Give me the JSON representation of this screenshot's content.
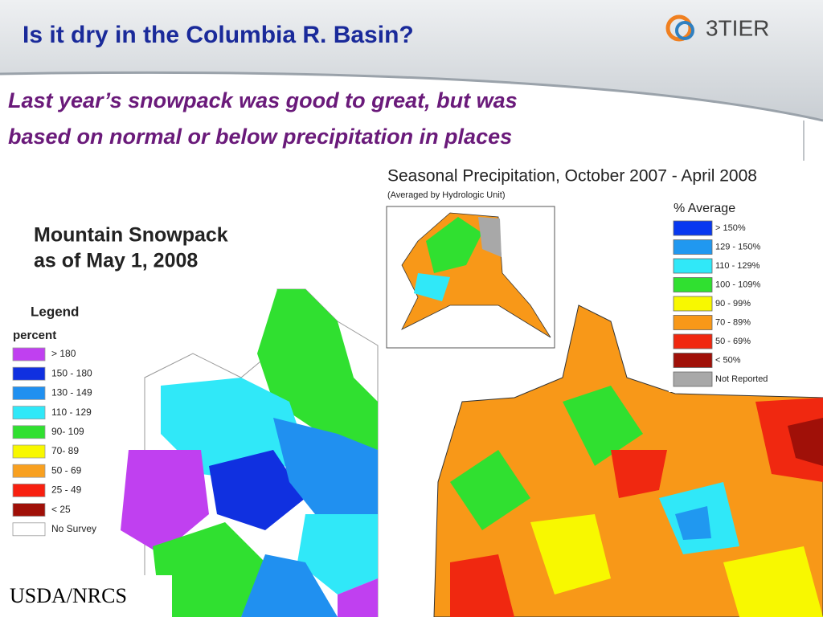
{
  "header": {
    "title": "Is it dry in the Columbia R. Basin?",
    "logo": "3TIER"
  },
  "subtitle": [
    "Last year’s snowpack was good to great, but was",
    "based on normal or below precipitation in places"
  ],
  "snowpack_map": {
    "title": [
      "Mountain Snowpack",
      "as of May 1, 2008"
    ],
    "legend_title": "Legend",
    "legend_unit": "percent",
    "legend": [
      {
        "label": "> 180",
        "color": "#c040f0"
      },
      {
        "label": "150 - 180",
        "color": "#1030e0"
      },
      {
        "label": "130 - 149",
        "color": "#2090f0"
      },
      {
        "label": "110 - 129",
        "color": "#30e8f8"
      },
      {
        "label": "90- 109",
        "color": "#30e030"
      },
      {
        "label": "70- 89",
        "color": "#f8f800"
      },
      {
        "label": "50 - 69",
        "color": "#f8a020"
      },
      {
        "label": "25 - 49",
        "color": "#f82010"
      },
      {
        "label": "< 25",
        "color": "#a01008"
      },
      {
        "label": "No Survey",
        "color": "#ffffff"
      }
    ],
    "source": "USDA/NRCS"
  },
  "precip_map": {
    "title": "Seasonal Precipitation, October 2007 - April 2008",
    "subtitle": "(Averaged by Hydrologic Unit)",
    "legend_title": "% Average",
    "legend": [
      {
        "label": "> 150%",
        "color": "#0838f0"
      },
      {
        "label": "129 - 150%",
        "color": "#2098f0"
      },
      {
        "label": "110 - 129%",
        "color": "#30e8f8"
      },
      {
        "label": "100 - 109%",
        "color": "#30e030"
      },
      {
        "label": "90 - 99%",
        "color": "#f8f800"
      },
      {
        "label": "70 - 89%",
        "color": "#f89818"
      },
      {
        "label": "50 - 69%",
        "color": "#f02810"
      },
      {
        "label": "< 50%",
        "color": "#a01008"
      },
      {
        "label": "Not Reported",
        "color": "#a8a8a8"
      }
    ]
  }
}
